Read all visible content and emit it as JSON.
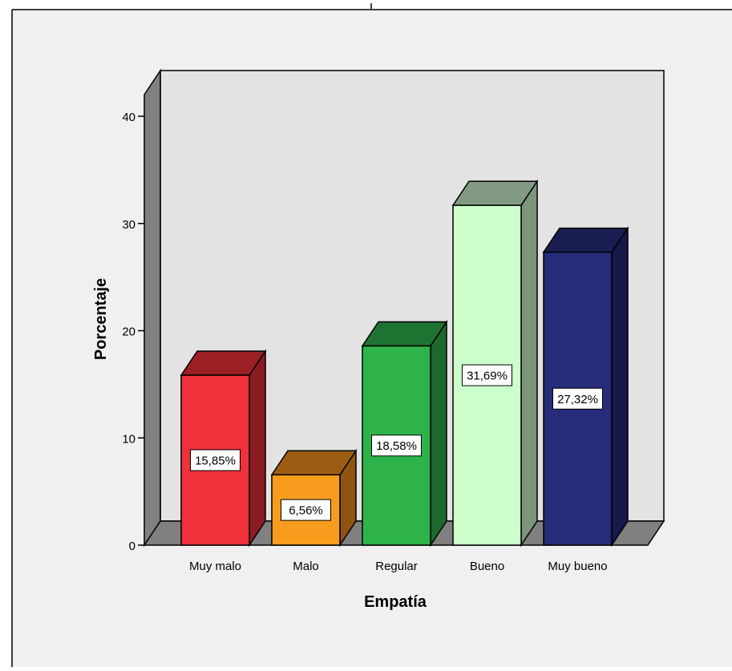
{
  "chart_data": {
    "type": "bar",
    "title": "",
    "xlabel": "Empatía",
    "ylabel": "Porcentaje",
    "categories": [
      "Muy malo",
      "Malo",
      "Regular",
      "Bueno",
      "Muy bueno"
    ],
    "values": [
      15.85,
      6.56,
      18.58,
      31.69,
      27.32
    ],
    "data_labels": [
      "15,85%",
      "6,56%",
      "18,58%",
      "31,69%",
      "27,32%"
    ],
    "ylim": [
      0,
      40
    ],
    "yticks": [
      0,
      10,
      20,
      30,
      40
    ],
    "ytick_labels": [
      "0",
      "10",
      "20",
      "30",
      "40"
    ],
    "grid": false,
    "legend": "none",
    "three_d": true,
    "colors": {
      "page_background": "#ffffff",
      "chart_area_background": "#f0f0f0",
      "plot_wall": "#e3e3e3",
      "side_wall": "#808080",
      "floor": "#808080",
      "outline": "#000000",
      "label_box": "#ffffff",
      "bars": [
        {
          "front": "#ef3139",
          "top": "#9b1f25",
          "side": "#8a1c21"
        },
        {
          "front": "#f89c1e",
          "top": "#9c5c12",
          "side": "#8e5410"
        },
        {
          "front": "#2eb34b",
          "top": "#1f7332",
          "side": "#1b6a2c"
        },
        {
          "front": "#ccffcc",
          "top": "#829a82",
          "side": "#7c957c"
        },
        {
          "front": "#262c7a",
          "top": "#191d52",
          "side": "#16194a"
        }
      ]
    }
  }
}
